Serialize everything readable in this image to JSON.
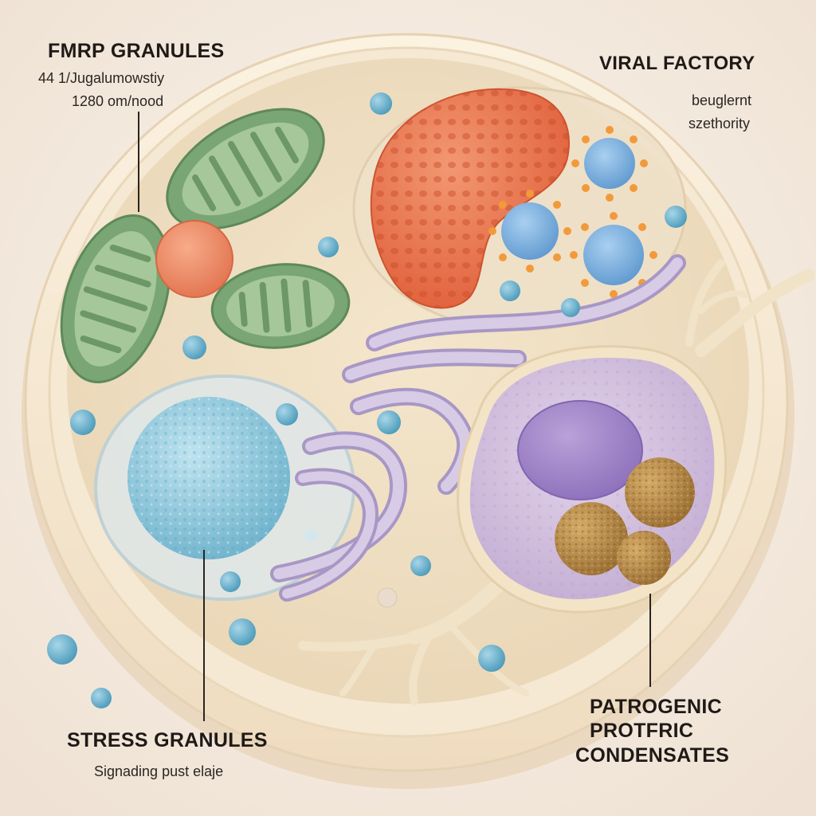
{
  "labels": {
    "fmrp": {
      "title": "FMRP GRANULES",
      "line1": "44 1/Jugalumowstiy",
      "line2": "1280 om/nood"
    },
    "viral": {
      "title": "VIRAL FACTORY",
      "line1": "beuglernt",
      "line2": "szethority"
    },
    "stress": {
      "title": "STRESS GRANULES",
      "line1": "Signading pust elaje"
    },
    "pathogenic": {
      "line1": "PATROGENIC",
      "line2": "PROTFRIC",
      "line3": "CONDENSATES"
    }
  }
}
